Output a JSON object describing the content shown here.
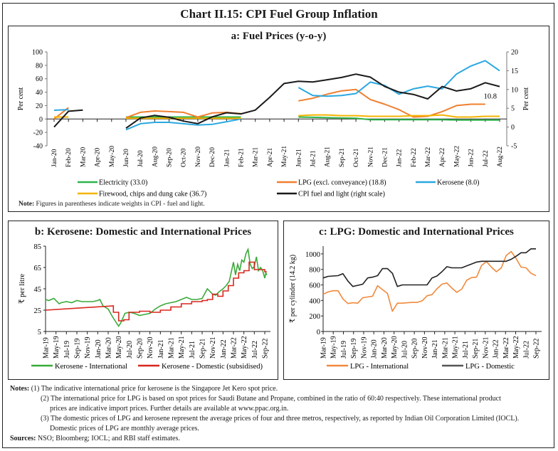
{
  "title": "Chart II.15: CPI Fuel Group Inflation",
  "colors": {
    "electricity": "#2db34a",
    "lpg": "#f07f2f",
    "kerosene": "#2ba8e0",
    "firewood": "#f5b400",
    "cpi_fuel": "#1a1a1a",
    "kero_intl": "#3aaa3a",
    "kero_dom": "#d9261c",
    "lpg_intl": "#f08a3c",
    "lpg_dom": "#222222"
  },
  "panel_a": {
    "note_label": "Note:",
    "note_text": "Figures in parentheses indicate weights in CPI - fuel and light."
  },
  "notes": {
    "label": "Notes:",
    "items": [
      "(1) The indicative international price for kerosene is the Singapore Jet Kero spot price.",
      "(2) The international price for LPG is based on spot prices for Saudi Butane and Propane, combined in the ratio of 60:40 respectively. These international product",
      "prices are indicative import prices. Further details are available at www.ppac.org.in.",
      "(3) The domestic prices of LPG and kerosene represent the average prices of four and three metros, respectively, as reported by Indian Oil Corporation Limited (IOCL).",
      "Domestic prices of LPG are monthly average prices."
    ],
    "sources_label": "Sources:",
    "sources_text": "NSO; Bloomberg; IOCL; and RBI staff estimates."
  },
  "chart_data": [
    {
      "type": "line",
      "title": "a: Fuel Prices (y-o-y)",
      "ylabel": "Per cent",
      "ylabel_right": "Per cent",
      "ylim": [
        -40,
        100
      ],
      "yticks": [
        -40,
        -20,
        0,
        20,
        40,
        60,
        80,
        100
      ],
      "ylim_right": [
        -5,
        20
      ],
      "yticks_right": [
        -5,
        0,
        5,
        10,
        15,
        20
      ],
      "grid": false,
      "legend_position": "bottom",
      "annotation": "10.8",
      "categories": [
        "Jan-20",
        "Feb-20",
        "Mar-20",
        "Apr-20",
        "May-20",
        "Jun-20",
        "Jul-20",
        "Aug-20",
        "Sep-20",
        "Oct-20",
        "Nov-20",
        "Dec-20",
        "Jan-21",
        "Feb-21",
        "Mar-21",
        "Apr-21",
        "May-21",
        "Jun-21",
        "Jul-21",
        "Aug-21",
        "Sep-21",
        "Oct-21",
        "Nov-21",
        "Dec-21",
        "Jan-22",
        "Feb-22",
        "Mar-22",
        "Apr-22",
        "May-22",
        "Jun-22",
        "Jul-22",
        "Aug-22"
      ],
      "series": [
        {
          "name": "Electricity (33.0)",
          "key": "electricity",
          "axis": "left",
          "values": [
            null,
            null,
            null,
            null,
            null,
            3,
            3,
            3,
            3,
            3,
            3,
            3,
            3,
            3,
            null,
            null,
            null,
            3,
            2.5,
            2,
            1.5,
            1,
            -1,
            -1,
            -1,
            -1,
            -1,
            -1,
            -1.5,
            -1.5,
            -1.5,
            -1.5
          ]
        },
        {
          "name": "LPG (excl. conveyance) (18.8)",
          "key": "lpg",
          "axis": "left",
          "values": [
            0,
            17,
            null,
            null,
            null,
            2,
            10,
            12,
            11,
            10,
            3,
            9,
            10,
            8,
            null,
            null,
            null,
            27,
            31,
            37,
            42,
            44,
            29,
            22,
            14,
            3,
            4,
            11,
            20,
            22,
            22,
            null
          ]
        },
        {
          "name": "Kerosene (8.0)",
          "key": "kerosene",
          "axis": "left",
          "values": [
            13,
            14,
            null,
            null,
            null,
            -16,
            -7,
            -5,
            -5,
            -7,
            -9,
            -8,
            -4,
            0,
            null,
            null,
            null,
            47,
            35,
            34,
            35,
            38,
            55,
            50,
            37,
            45,
            49,
            45,
            67,
            79,
            87,
            72
          ]
        },
        {
          "name": "Firewood, chips and dung cake (36.7)",
          "key": "firewood",
          "axis": "left",
          "values": [
            3,
            3,
            null,
            null,
            null,
            1,
            1,
            1,
            1,
            1,
            1,
            1,
            1,
            1,
            null,
            null,
            null,
            5,
            6,
            6,
            5,
            5,
            4,
            4,
            4,
            5,
            5,
            6,
            3,
            3,
            4,
            4
          ]
        },
        {
          "name": "CPI fuel and light (right scale)",
          "key": "cpi_fuel",
          "axis": "right",
          "values": [
            0,
            4.2,
            4.5,
            null,
            null,
            -0.3,
            2.4,
            3.1,
            2.6,
            1.6,
            0.9,
            2.7,
            3.8,
            3.5,
            4.5,
            7.9,
            11.6,
            12.2,
            12.0,
            12.6,
            13.2,
            14.1,
            13.3,
            10.8,
            9.3,
            8.7,
            7.5,
            10.8,
            9.6,
            10.2,
            11.8,
            10.8
          ]
        }
      ]
    },
    {
      "type": "line",
      "title": "b: Kerosene: Domestic and International Prices",
      "ylabel": "₹ per litre",
      "ylim": [
        5,
        85
      ],
      "yticks": [
        5,
        25,
        45,
        65,
        85
      ],
      "grid": false,
      "legend_position": "bottom",
      "categories": [
        "Mar-19",
        "May-19",
        "Jul-19",
        "Sep-19",
        "Nov-19",
        "Jan-20",
        "Mar-20",
        "May-20",
        "Jul-20",
        "Sep-20",
        "Nov-20",
        "Jan-21",
        "Mar-21",
        "May-21",
        "Jul-21",
        "Sep-21",
        "Nov-21",
        "Jan-22",
        "Mar-22",
        "May-22",
        "Jul-22",
        "Sep-22"
      ],
      "series": [
        {
          "name": "Kerosene - International",
          "key": "kero_intl",
          "x": [
            0,
            0.3,
            0.8,
            1.3,
            1.5,
            2,
            2.5,
            3,
            3.5,
            4,
            4.5,
            5,
            5.2,
            5.5,
            6,
            6.4,
            6.8,
            7,
            7.2,
            7.6,
            8,
            8.5,
            9,
            9.5,
            10,
            10.5,
            11,
            11.5,
            12,
            12.5,
            13,
            13.5,
            14,
            14.5,
            15,
            15.5,
            16,
            16.3,
            16.6,
            17,
            17.3,
            17.6,
            18,
            18.2,
            18.4,
            18.6,
            18.8,
            19,
            19.2,
            19.4,
            19.6,
            19.8,
            20,
            20.2,
            20.4,
            20.6,
            20.8,
            21,
            21.1,
            21.2
          ],
          "values": [
            35,
            34,
            36,
            31,
            32,
            33,
            32,
            34,
            33,
            33,
            33,
            34,
            35,
            29,
            26,
            19,
            13,
            10,
            13,
            22,
            23,
            22,
            20,
            21,
            22,
            26,
            29,
            31,
            32,
            33,
            35,
            37,
            35,
            35,
            36,
            45,
            40,
            39,
            42,
            45,
            48,
            52,
            70,
            58,
            68,
            62,
            72,
            70,
            78,
            82,
            68,
            64,
            66,
            75,
            62,
            65,
            62,
            55,
            60,
            58
          ]
        },
        {
          "name": "Kerosene - Domestic (subsidised)",
          "key": "kero_dom",
          "x": [
            0,
            6.5,
            6.5,
            7,
            7,
            7.5,
            7.5,
            8,
            8,
            9,
            9,
            10,
            10,
            11,
            11,
            12,
            12,
            13,
            13,
            14,
            14,
            15,
            15,
            15.5,
            15.5,
            16,
            16,
            16.5,
            16.5,
            17,
            17,
            17.5,
            17.5,
            18,
            18,
            18.5,
            18.5,
            19,
            19,
            19.5,
            19.5,
            20,
            20,
            20.5,
            20.5,
            21,
            21,
            21.2
          ],
          "values": [
            25,
            29,
            23,
            23,
            15,
            15,
            16,
            16,
            23,
            23,
            24,
            24,
            23,
            23,
            25,
            25,
            28,
            28,
            31,
            31,
            33,
            33,
            34,
            34,
            35,
            35,
            40,
            40,
            38,
            38,
            43,
            43,
            48,
            48,
            55,
            55,
            60,
            60,
            62,
            62,
            70,
            70,
            63,
            63,
            63,
            63,
            61,
            61
          ]
        }
      ]
    },
    {
      "type": "line",
      "title": "c: LPG: Domestic and International Prices",
      "ylabel": "₹ per cylinder (14.2 kg)",
      "ylim": [
        0,
        1100
      ],
      "yticks": [
        0,
        200,
        400,
        600,
        800,
        1000
      ],
      "grid": false,
      "legend_position": "bottom",
      "categories": [
        "Mar-19",
        "May-19",
        "Jul-19",
        "Sep-19",
        "Nov-19",
        "Jan-20",
        "Mar-20",
        "May-20",
        "Jul-20",
        "Sep-20",
        "Nov-20",
        "Jan-21",
        "Mar-21",
        "May-21",
        "Jul-21",
        "Sep-21",
        "Nov-21",
        "Jan-22",
        "Mar-22",
        "May-22",
        "Jul-22",
        "Sep-22"
      ],
      "series": [
        {
          "name": "LPG - International",
          "key": "lpg_intl",
          "values": [
            480,
            510,
            525,
            525,
            420,
            360,
            370,
            365,
            435,
            445,
            455,
            590,
            540,
            490,
            260,
            365,
            365,
            370,
            375,
            375,
            395,
            460,
            475,
            550,
            610,
            625,
            560,
            505,
            545,
            660,
            695,
            700,
            850,
            900,
            830,
            770,
            820,
            980,
            1030,
            940,
            830,
            820,
            750,
            720
          ]
        },
        {
          "name": "LPG - Domestic",
          "key": "lpg_dom",
          "values": [
            690,
            710,
            715,
            720,
            745,
            650,
            580,
            595,
            610,
            690,
            700,
            720,
            810,
            810,
            750,
            580,
            600,
            600,
            600,
            600,
            600,
            600,
            690,
            715,
            770,
            835,
            820,
            820,
            820,
            845,
            870,
            895,
            905,
            905,
            905,
            905,
            905,
            905,
            930,
            970,
            1015,
            1015,
            1065,
            1065
          ]
        }
      ]
    }
  ]
}
